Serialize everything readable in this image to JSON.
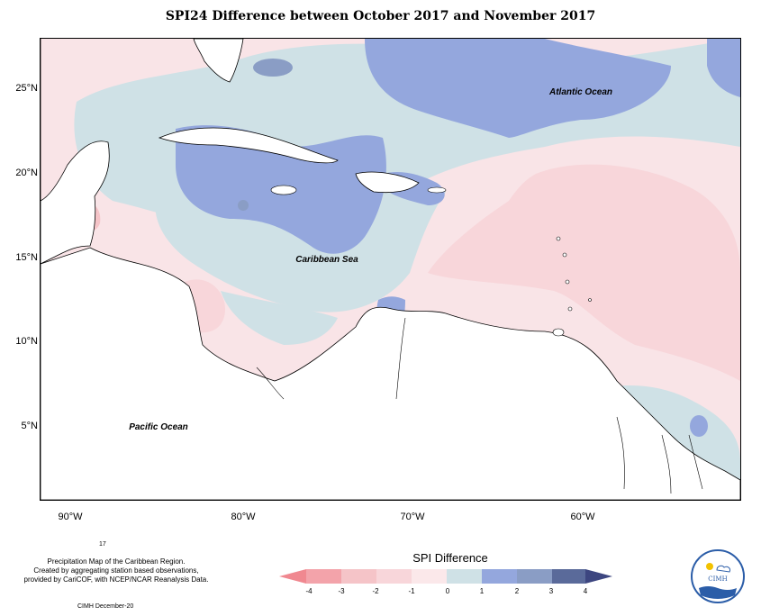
{
  "title": "SPI24 Difference between October 2017 and November 2017",
  "map": {
    "labels": {
      "atlantic": "Atlantic Ocean",
      "caribbean": "Caribbean Sea",
      "pacific": "Pacific Ocean"
    },
    "lat_ticks": [
      "25°N",
      "20°N",
      "15°N",
      "10°N",
      "5°N"
    ],
    "lon_ticks": [
      "90°W",
      "80°W",
      "70°W",
      "60°W"
    ],
    "colors": {
      "neg4": "#f3a3aa",
      "neg3": "#f5c4c8",
      "neg2": "#f8d6da",
      "neg1": "#fbe8ea",
      "pos0": "#cfe1e6",
      "pos1": "#94a7dd",
      "pos2": "#8a9dc5",
      "pos3": "#5a6a9a",
      "pos4": "#3d4680",
      "land": "#ffffff"
    }
  },
  "legend": {
    "title": "SPI Difference",
    "ticks": [
      "-4",
      "-3",
      "-2",
      "-1",
      "0",
      "1",
      "2",
      "3",
      "4"
    ]
  },
  "credits": {
    "page_num": "17",
    "line1": "Precipitation Map of the Caribbean Region.",
    "line2": "Created by aggregating station based observations,",
    "line3": "provided by CariCOF, with NCEP/NCAR Reanalysis Data.",
    "date": "CIMH December-20"
  },
  "logo": {
    "text": "CIMH"
  }
}
